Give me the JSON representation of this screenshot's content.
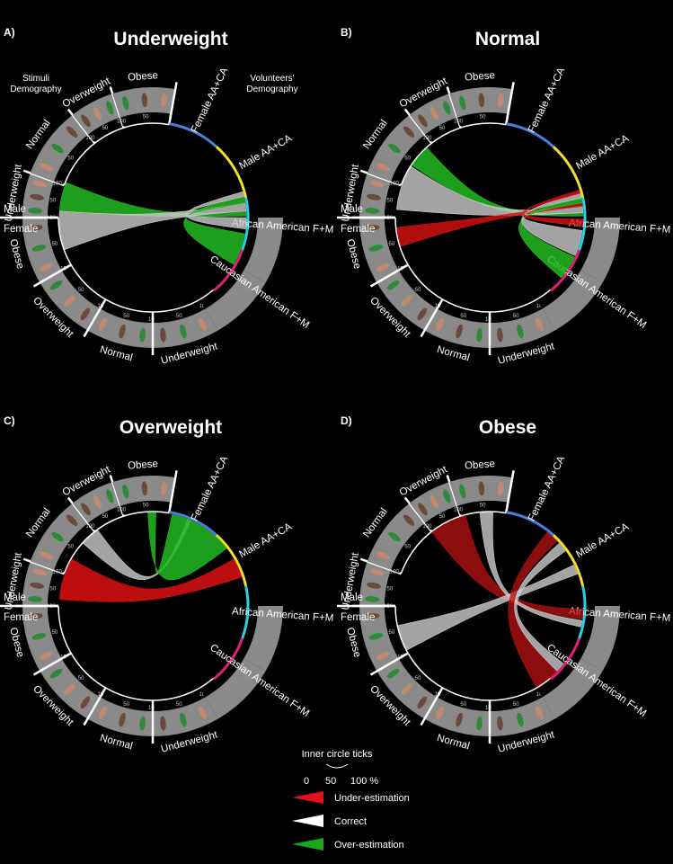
{
  "panels": [
    {
      "letter": "A)",
      "title": "Underweight",
      "ribbons": [
        {
          "from": [
            158,
            176
          ],
          "to": [
            1,
            4
          ],
          "color": "#22bb22",
          "op": 0.85
        },
        {
          "from": [
            176,
            200
          ],
          "to": [
            4,
            9
          ],
          "color": "#cccccc",
          "op": 0.8
        },
        {
          "from": [
            330,
            350
          ],
          "to": [
            9,
            13
          ],
          "color": "#22bb22",
          "op": 0.85
        },
        {
          "from": [
            353,
            360
          ],
          "to": [
            13,
            16
          ],
          "color": "#cccccc",
          "op": 0.8
        }
      ]
    },
    {
      "letter": "B)",
      "title": "Normal",
      "ribbons": [
        {
          "from": [
            132,
            146
          ],
          "to": [
            1,
            3
          ],
          "color": "#22bb22",
          "op": 0.85
        },
        {
          "from": [
            147,
            175
          ],
          "to": [
            3,
            7
          ],
          "color": "#cccccc",
          "op": 0.8
        },
        {
          "from": [
            186,
            198
          ],
          "to": [
            7,
            9
          ],
          "color": "#dd1111",
          "op": 0.8
        },
        {
          "from": [
            320,
            335
          ],
          "to": [
            9,
            12
          ],
          "color": "#22bb22",
          "op": 0.85
        },
        {
          "from": [
            336,
            352
          ],
          "to": [
            12,
            15
          ],
          "color": "#cccccc",
          "op": 0.8
        },
        {
          "from": [
            355,
            359
          ],
          "to": [
            15,
            17
          ],
          "color": "#dd1111",
          "op": 0.8
        }
      ]
    },
    {
      "letter": "C)",
      "title": "Overweight",
      "ribbons": [
        {
          "from": [
            126,
            138
          ],
          "to": [
            66,
            68
          ],
          "color": "#cccccc",
          "op": 0.8
        },
        {
          "from": [
            88,
            93
          ],
          "to": [
            38,
            78
          ],
          "color": "#22bb22",
          "op": 0.85
        },
        {
          "from": [
            150,
            176
          ],
          "to": [
            18,
            30
          ],
          "color": "#dd1111",
          "op": 0.85
        }
      ]
    },
    {
      "letter": "D)",
      "title": "Obese",
      "ribbons": [
        {
          "from": [
            105,
            128
          ],
          "to": [
            -8,
            -2
          ],
          "color": "#bb1111",
          "op": 0.75
        },
        {
          "from": [
            88,
            96
          ],
          "to": [
            -13,
            -9
          ],
          "color": "#cccccc",
          "op": 0.8
        },
        {
          "from": [
            192,
            208
          ],
          "to": [
            20,
            26
          ],
          "color": "#cccccc",
          "op": 0.8
        },
        {
          "from": [
            300,
            316
          ],
          "to": [
            44,
            52
          ],
          "color": "#bb1111",
          "op": 0.75
        },
        {
          "from": [
            316,
            322
          ],
          "to": [
            36,
            42
          ],
          "color": "#cccccc",
          "op": 0.8
        }
      ]
    }
  ],
  "stimuli_segments": {
    "male": [
      "Underweight",
      "Normal",
      "Overweight",
      "Obese"
    ],
    "female": [
      "Obese",
      "Overweight",
      "Normal",
      "Underweight"
    ]
  },
  "volunteer_segments": [
    {
      "label": "Female AA+CA",
      "color": "#4a7fdc"
    },
    {
      "label": "Male AA+CA",
      "color": "#f0e02a"
    },
    {
      "label": "African American F+M",
      "color": "#2ad0e6"
    },
    {
      "label": "Caucasian American F+M",
      "color": "#e0207a"
    }
  ],
  "side_labels": {
    "male": "Male",
    "female": "Female"
  },
  "corner_labels": {
    "stimuli": "Stimuli Demography",
    "volunteers": "Volunteers' Demography"
  },
  "tick_values": [
    "0",
    "50",
    "100"
  ],
  "legend": {
    "title": "Inner circle ticks",
    "ticks": [
      "0",
      "50",
      "100 %"
    ],
    "items": [
      {
        "label": "Under-estimation",
        "color": "#e3111d"
      },
      {
        "label": "Correct",
        "color": "#ffffff"
      },
      {
        "label": "Over-estimation",
        "color": "#1aa81a"
      }
    ]
  }
}
